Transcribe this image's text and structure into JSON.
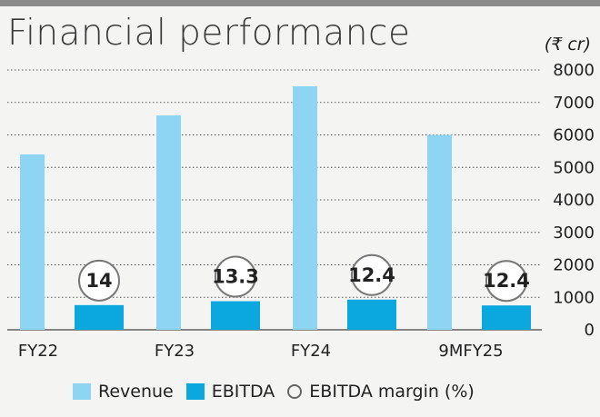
{
  "title": "Financial performance",
  "unit": "(₹ cr)",
  "colors": {
    "revenue": "#8dd5f2",
    "ebitda": "#0ba7df",
    "circle_stroke": "#777777",
    "grid": "#555555"
  },
  "legend": [
    {
      "label": "Revenue",
      "kind": "box",
      "color": "#8dd5f2"
    },
    {
      "label": "EBITDA",
      "kind": "box",
      "color": "#0ba7df"
    },
    {
      "label": "EBITDA margin (%)",
      "kind": "circle"
    }
  ],
  "chart_data": {
    "type": "bar",
    "categories": [
      "FY22",
      "FY23",
      "FY24",
      "9MFY25"
    ],
    "series": [
      {
        "name": "Revenue",
        "values": [
          5400,
          6600,
          7500,
          6000
        ]
      },
      {
        "name": "EBITDA",
        "values": [
          760,
          880,
          930,
          750
        ]
      },
      {
        "name": "EBITDA margin (%)",
        "values": [
          "14",
          "13.3",
          "12.4",
          "12.4"
        ]
      }
    ],
    "y_ticks": [
      "8000",
      "7000",
      "6000",
      "5000",
      "4000",
      "3000",
      "2000",
      "1000",
      "0"
    ],
    "ylim": [
      0,
      8000
    ],
    "grid": true,
    "legend_position": "bottom"
  }
}
